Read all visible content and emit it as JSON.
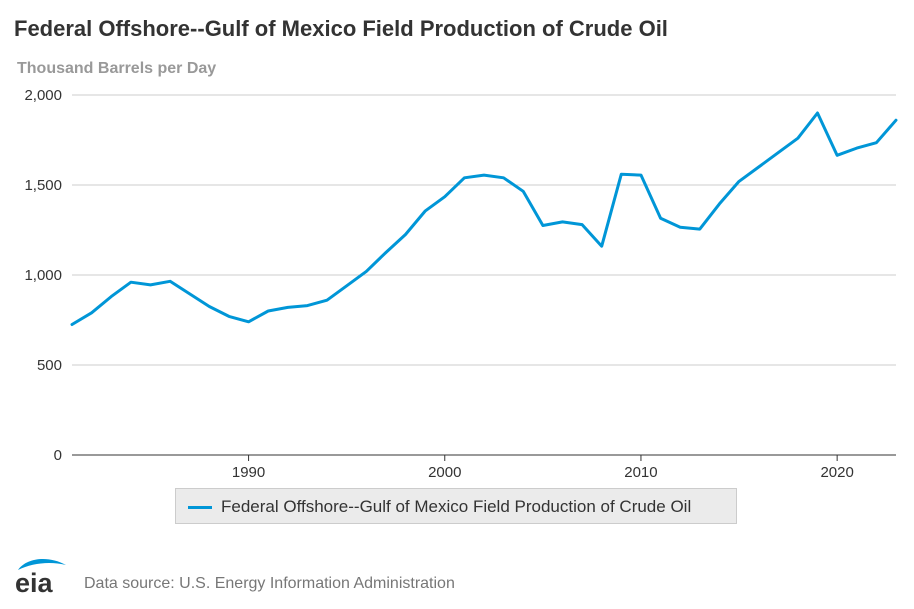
{
  "header": {
    "title": "Federal Offshore--Gulf of Mexico Field Production of Crude Oil"
  },
  "chart_data": {
    "type": "line",
    "ylabel": "Thousand Barrels per Day",
    "ylim": [
      0,
      2000
    ],
    "y_ticks": [
      "0",
      "500",
      "1,000",
      "1,500",
      "2,000"
    ],
    "xlim": [
      1981,
      2023
    ],
    "x_ticks": [
      "1990",
      "2000",
      "2010",
      "2020"
    ],
    "grid": "horizontal",
    "legend_position": "bottom-center",
    "series": [
      {
        "name": "Federal Offshore--Gulf of Mexico Field Production of Crude Oil",
        "color": "#0096d7",
        "x": [
          1981,
          1982,
          1983,
          1984,
          1985,
          1986,
          1987,
          1988,
          1989,
          1990,
          1991,
          1992,
          1993,
          1994,
          1995,
          1996,
          1997,
          1998,
          1999,
          2000,
          2001,
          2002,
          2003,
          2004,
          2005,
          2006,
          2007,
          2008,
          2009,
          2010,
          2011,
          2012,
          2013,
          2014,
          2015,
          2016,
          2017,
          2018,
          2019,
          2020,
          2021,
          2022,
          2023
        ],
        "values": [
          725,
          790,
          880,
          960,
          945,
          965,
          895,
          825,
          770,
          740,
          800,
          820,
          830,
          860,
          940,
          1020,
          1125,
          1225,
          1355,
          1435,
          1540,
          1555,
          1540,
          1465,
          1275,
          1295,
          1280,
          1160,
          1560,
          1555,
          1315,
          1265,
          1255,
          1395,
          1520,
          1600,
          1680,
          1760,
          1900,
          1665,
          1705,
          1735,
          1860
        ]
      }
    ]
  },
  "legend": {
    "label": "Federal Offshore--Gulf of Mexico Field Production of Crude Oil"
  },
  "footer": {
    "logo_text": "eia",
    "source": "Data source: U.S. Energy Information Administration"
  },
  "colors": {
    "line": "#0096d7",
    "grid": "#cccccc",
    "axis": "#333333"
  }
}
